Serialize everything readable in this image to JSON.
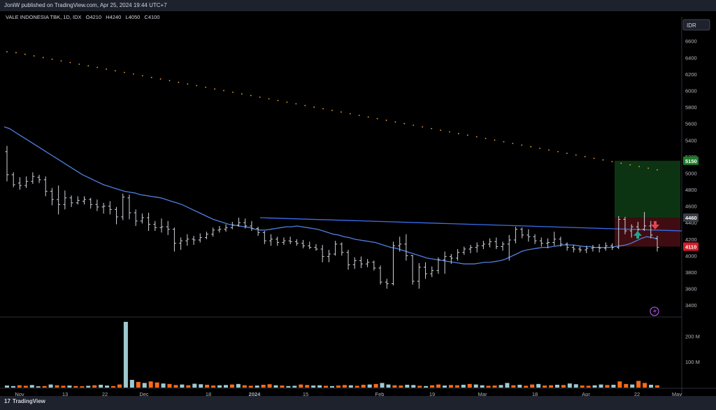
{
  "header": {
    "publish_line": "JoniW published on TradingView.com, Apr 25, 2024 19:44 UTC+7"
  },
  "legend": {
    "symbol_line": "VALE INDONESIA TBK, 1D, IDX",
    "o_label": "O",
    "o_value": "4210",
    "h_label": "H",
    "h_value": "4240",
    "l_label": "L",
    "l_value": "4050",
    "c_label": "C",
    "c_value": "4100"
  },
  "currency": "IDR",
  "footer": {
    "brand": "TradingView"
  },
  "colors": {
    "bar": "#cfd2d9",
    "ma": "#4f7fe0",
    "trendline": "#3b6ef0",
    "dotted": "#f0a830",
    "vol_up": "#9ec9cf",
    "vol_down": "#ff6a1a",
    "target_zone": "#0f3d15",
    "stop_zone": "#4a0f14",
    "target_label": "#1d7f2a",
    "entry_label": "#3a3d45",
    "stop_label": "#d31d2a",
    "arrow_up": "#1fa68b",
    "arrow_down": "#e8424f",
    "lightning": "#9b4fd0"
  },
  "chart_data": {
    "type": "bar",
    "title": "VALE INDONESIA TBK, 1D, IDX",
    "x_tick_labels": [
      "Nov",
      "13",
      "22",
      "Dec",
      "18",
      "2024",
      "15",
      "Feb",
      "19",
      "Mar",
      "18",
      "Apr",
      "22",
      "May"
    ],
    "y_tick_labels": [
      "6600",
      "6400",
      "6200",
      "6000",
      "5800",
      "5600",
      "5400",
      "5200",
      "5000",
      "4800",
      "4600",
      "4400",
      "4200",
      "4000",
      "3800",
      "3600",
      "3400"
    ],
    "y_range": [
      3300,
      6750
    ],
    "volume_tick_labels": [
      "200 M",
      "100 M"
    ],
    "volume_range": [
      0,
      255
    ],
    "price_labels": {
      "target": "5150",
      "entry": "4460",
      "stop": "4110"
    },
    "position": {
      "entry": 4460,
      "target": 5150,
      "stop": 4110
    },
    "series": [
      {
        "values": [
          [
            5260,
            5330,
            4900,
            4980
          ],
          [
            4980,
            5010,
            4830,
            4860
          ],
          [
            4880,
            4950,
            4800,
            4850
          ],
          [
            4850,
            4960,
            4820,
            4900
          ],
          [
            4900,
            5010,
            4870,
            4960
          ],
          [
            4950,
            4980,
            4880,
            4920
          ],
          [
            4920,
            4960,
            4720,
            4780
          ],
          [
            4780,
            4820,
            4610,
            4680
          ],
          [
            4680,
            4850,
            4500,
            4620
          ],
          [
            4620,
            4790,
            4560,
            4700
          ],
          [
            4700,
            4730,
            4590,
            4640
          ],
          [
            4640,
            4720,
            4620,
            4670
          ],
          [
            4660,
            4720,
            4620,
            4680
          ],
          [
            4680,
            4700,
            4570,
            4620
          ],
          [
            4620,
            4680,
            4540,
            4590
          ],
          [
            4590,
            4640,
            4510,
            4600
          ],
          [
            4600,
            4660,
            4500,
            4560
          ],
          [
            4560,
            4590,
            4380,
            4470
          ],
          [
            4470,
            4750,
            4430,
            4710
          ],
          [
            4700,
            4740,
            4440,
            4520
          ],
          [
            4520,
            4560,
            4360,
            4420
          ],
          [
            4420,
            4510,
            4390,
            4460
          ],
          [
            4460,
            4520,
            4300,
            4380
          ],
          [
            4380,
            4420,
            4300,
            4340
          ],
          [
            4340,
            4450,
            4280,
            4350
          ],
          [
            4350,
            4420,
            4250,
            4320
          ],
          [
            4320,
            4340,
            4050,
            4150
          ],
          [
            4150,
            4220,
            4070,
            4180
          ],
          [
            4180,
            4260,
            4120,
            4200
          ],
          [
            4200,
            4240,
            4130,
            4190
          ],
          [
            4190,
            4270,
            4160,
            4220
          ],
          [
            4220,
            4290,
            4200,
            4260
          ],
          [
            4260,
            4340,
            4230,
            4310
          ],
          [
            4310,
            4360,
            4280,
            4320
          ],
          [
            4320,
            4380,
            4290,
            4340
          ],
          [
            4340,
            4410,
            4320,
            4370
          ],
          [
            4370,
            4460,
            4350,
            4400
          ],
          [
            4400,
            4450,
            4330,
            4360
          ],
          [
            4360,
            4420,
            4300,
            4330
          ],
          [
            4330,
            4350,
            4240,
            4280
          ],
          [
            4280,
            4300,
            4140,
            4180
          ],
          [
            4180,
            4260,
            4120,
            4200
          ],
          [
            4200,
            4230,
            4120,
            4160
          ],
          [
            4160,
            4220,
            4130,
            4180
          ],
          [
            4180,
            4230,
            4140,
            4170
          ],
          [
            4170,
            4200,
            4120,
            4150
          ],
          [
            4150,
            4190,
            4090,
            4120
          ],
          [
            4120,
            4170,
            4080,
            4100
          ],
          [
            4100,
            4140,
            4060,
            4080
          ],
          [
            4080,
            4130,
            3920,
            3990
          ],
          [
            3990,
            4070,
            3920,
            4020
          ],
          [
            4020,
            4180,
            4000,
            4140
          ],
          [
            4140,
            4160,
            4000,
            4040
          ],
          [
            4040,
            4070,
            3830,
            3890
          ],
          [
            3890,
            3980,
            3840,
            3940
          ],
          [
            3940,
            3990,
            3850,
            3900
          ],
          [
            3900,
            3960,
            3860,
            3920
          ],
          [
            3920,
            3940,
            3820,
            3850
          ],
          [
            3850,
            3880,
            3650,
            3680
          ],
          [
            3680,
            3720,
            3600,
            3660
          ],
          [
            3660,
            4170,
            3640,
            4120
          ],
          [
            4120,
            4230,
            4050,
            4140
          ],
          [
            4140,
            4260,
            3940,
            4000
          ],
          [
            4000,
            4010,
            3650,
            3690
          ],
          [
            3690,
            3910,
            3600,
            3860
          ],
          [
            3860,
            3920,
            3720,
            3780
          ],
          [
            3780,
            3870,
            3740,
            3820
          ],
          [
            3820,
            3980,
            3780,
            3950
          ],
          [
            3950,
            4050,
            3780,
            3990
          ],
          [
            3990,
            4020,
            3900,
            3970
          ],
          [
            3970,
            4080,
            3940,
            4040
          ],
          [
            4040,
            4110,
            4010,
            4080
          ],
          [
            4080,
            4130,
            4030,
            4100
          ],
          [
            4100,
            4160,
            4040,
            4120
          ],
          [
            4120,
            4180,
            4080,
            4140
          ],
          [
            4140,
            4210,
            4100,
            4170
          ],
          [
            4170,
            4220,
            4080,
            4110
          ],
          [
            4110,
            4170,
            4060,
            4140
          ],
          [
            4140,
            4250,
            3940,
            4190
          ],
          [
            4190,
            4350,
            4150,
            4320
          ],
          [
            4320,
            4340,
            4210,
            4250
          ],
          [
            4250,
            4320,
            4170,
            4230
          ],
          [
            4230,
            4260,
            4140,
            4180
          ],
          [
            4180,
            4220,
            4110,
            4150
          ],
          [
            4150,
            4210,
            4090,
            4160
          ],
          [
            4160,
            4290,
            4120,
            4200
          ],
          [
            4200,
            4230,
            4110,
            4140
          ],
          [
            4140,
            4160,
            4060,
            4100
          ],
          [
            4100,
            4130,
            4040,
            4080
          ],
          [
            4080,
            4110,
            4040,
            4070
          ],
          [
            4070,
            4120,
            4030,
            4090
          ],
          [
            4090,
            4130,
            4050,
            4100
          ],
          [
            4100,
            4140,
            4040,
            4090
          ],
          [
            4090,
            4160,
            4060,
            4120
          ],
          [
            4120,
            4150,
            4070,
            4100
          ],
          [
            4100,
            4480,
            4080,
            4440
          ],
          [
            4440,
            4470,
            4260,
            4300
          ],
          [
            4300,
            4380,
            4220,
            4350
          ],
          [
            4350,
            4410,
            4270,
            4320
          ],
          [
            4320,
            4530,
            4300,
            4360
          ],
          [
            4360,
            4420,
            4210,
            4250
          ],
          [
            4210,
            4240,
            4050,
            4100
          ]
        ]
      },
      {
        "values": [
          5560,
          5540,
          5500,
          5460,
          5420,
          5380,
          5340,
          5300,
          5260,
          5220,
          5180,
          5140,
          5100,
          5060,
          5020,
          4980,
          4950,
          4920,
          4890,
          4860,
          4840,
          4820,
          4800,
          4780,
          4770,
          4760,
          4740,
          4730,
          4720,
          4710,
          4700,
          4680,
          4660,
          4640,
          4620,
          4590,
          4560,
          4530,
          4500,
          4470,
          4440,
          4420,
          4400,
          4380,
          4370,
          4360,
          4350,
          4340,
          4320,
          4310,
          4310,
          4320,
          4330,
          4340,
          4350,
          4350,
          4360,
          4350,
          4340,
          4330,
          4320,
          4300,
          4280,
          4260,
          4250,
          4230,
          4220,
          4200,
          4190,
          4180,
          4170,
          4160,
          4140,
          4120,
          4100,
          4090,
          4070,
          4050,
          4030,
          4010,
          3990,
          3970,
          3960,
          3950,
          3940,
          3930,
          3920,
          3910,
          3900,
          3900,
          3900,
          3910,
          3920,
          3920,
          3930,
          3940,
          3960,
          3990,
          4020,
          4050,
          4070,
          4080,
          4090,
          4100,
          4100,
          4110,
          4120,
          4130,
          4130,
          4130,
          4120,
          4110,
          4110,
          4100,
          4100,
          4100,
          4100,
          4110,
          4120,
          4130,
          4150,
          4180,
          4210,
          4230,
          4220,
          4200
        ]
      },
      {
        "values": [
          6470,
          6460,
          6440,
          6420,
          6400,
          6380,
          6360,
          6340,
          6320,
          6300,
          6280,
          6260,
          6240,
          6220,
          6200,
          6180,
          6160,
          6140,
          6120,
          6100,
          6080,
          6060,
          6040,
          6020,
          6000,
          5980,
          5960,
          5940,
          5920,
          5900,
          5880,
          5860,
          5840,
          5820,
          5800,
          5780,
          5760,
          5740,
          5720,
          5700,
          5680,
          5660,
          5640,
          5620,
          5600,
          5580,
          5560,
          5540,
          5520,
          5500,
          5480,
          5460,
          5440,
          5420,
          5400,
          5380,
          5360,
          5340,
          5320,
          5300,
          5280,
          5260,
          5240,
          5220,
          5200,
          5180,
          5160,
          5140,
          5120,
          5100,
          5080,
          5060,
          5040
        ]
      },
      {
        "values": [
          4460,
          4300
        ]
      },
      {
        "values": [
          8,
          6,
          9,
          7,
          10,
          5,
          6,
          12,
          9,
          7,
          8,
          6,
          5,
          7,
          9,
          11,
          8,
          6,
          12,
          255,
          30,
          22,
          18,
          24,
          20,
          16,
          14,
          10,
          12,
          9,
          15,
          13,
          11,
          8,
          9,
          10,
          12,
          14,
          9,
          7,
          8,
          11,
          13,
          9,
          8,
          6,
          7,
          12,
          10,
          8,
          9,
          7,
          6,
          8,
          10,
          9,
          7,
          11,
          12,
          14,
          18,
          12,
          9,
          8,
          11,
          10,
          7,
          6,
          9,
          12,
          8,
          10,
          9,
          11,
          14,
          12,
          9,
          7,
          8,
          10,
          18,
          9,
          11,
          7,
          12,
          14,
          8,
          9,
          11,
          10,
          16,
          13,
          8,
          7,
          9,
          12,
          10,
          11,
          24,
          14,
          12,
          26,
          18,
          11,
          9
        ]
      }
    ]
  }
}
